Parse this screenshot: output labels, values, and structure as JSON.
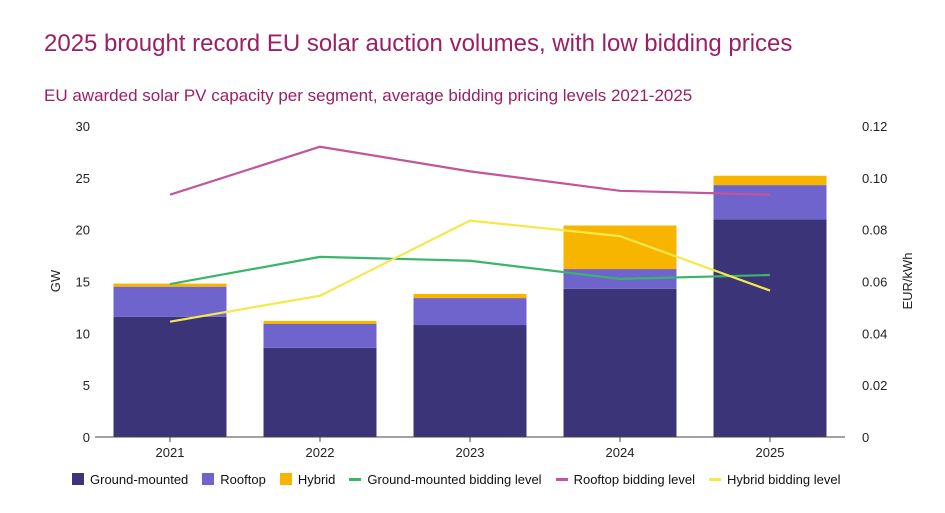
{
  "title": "2025 brought record EU solar auction volumes, with low bidding prices",
  "subtitle": "EU awarded solar PV capacity per segment, average bidding pricing levels 2021-2025",
  "chart_data": {
    "type": "bar",
    "stacked": true,
    "categories": [
      "2021",
      "2022",
      "2023",
      "2024",
      "2025"
    ],
    "ylabel": "GW",
    "y2label": "EUR/kWh",
    "ylim": [
      0,
      30
    ],
    "y_ticks": [
      "0",
      "5",
      "10",
      "15",
      "20",
      "25",
      "30"
    ],
    "y2lim": [
      0,
      0.12
    ],
    "y2_ticks": [
      "0",
      "0.02",
      "0.04",
      "0.06",
      "0.08",
      "0.10",
      "0.12"
    ],
    "series": [
      {
        "name": "Ground-mounted",
        "kind": "bar",
        "color": "#3b3478",
        "values": [
          11.6,
          8.6,
          10.8,
          14.3,
          21.0
        ]
      },
      {
        "name": "Rooftop",
        "kind": "bar",
        "color": "#6f63cc",
        "values": [
          2.9,
          2.3,
          2.6,
          1.9,
          3.3
        ]
      },
      {
        "name": "Hybrid",
        "kind": "bar",
        "color": "#f7b500",
        "values": [
          0.3,
          0.3,
          0.4,
          4.2,
          0.9
        ]
      },
      {
        "name": "Ground-mounted bidding level",
        "kind": "line",
        "axis": "right",
        "color": "#3bb56b",
        "values": [
          0.059,
          0.0695,
          0.068,
          0.061,
          0.0625
        ]
      },
      {
        "name": "Rooftop bidding level",
        "kind": "line",
        "axis": "right",
        "color": "#c2559b",
        "values": [
          0.0935,
          0.112,
          0.1025,
          0.095,
          0.0935
        ]
      },
      {
        "name": "Hybrid bidding level",
        "kind": "line",
        "axis": "right",
        "color": "#f5e84a",
        "values": [
          0.0445,
          0.0545,
          0.0835,
          0.0775,
          0.0565
        ]
      }
    ]
  }
}
